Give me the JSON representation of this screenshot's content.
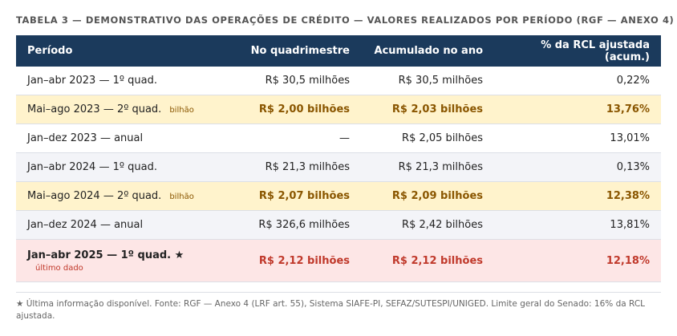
{
  "caption": "TABELA 3 — DEMONSTRATIVO DAS OPERAÇÕES DE CRÉDITO — VALORES REALIZADOS POR PERÍODO (RGF — ANEXO 4)",
  "headers": [
    "Período",
    "No quadrimestre",
    "Acumulado no ano",
    "% da RCL ajustada (acum.)"
  ],
  "rows": [
    {
      "period": "Jan–abr 2023 — 1º quad.",
      "tag": "",
      "quad": "R$ 30,5 milhões",
      "acum": "R$ 30,5 milhões",
      "pct": "0,22%",
      "style": "white"
    },
    {
      "period": "Mai–ago 2023 — 2º quad.",
      "tag": "bilhão",
      "quad": "R$ 2,00 bilhões",
      "acum": "R$ 2,03 bilhões",
      "pct": "13,76%",
      "style": "highlight"
    },
    {
      "period": "Jan–dez 2023 — anual",
      "tag": "",
      "quad": "—",
      "acum": "R$ 2,05 bilhões",
      "pct": "13,01%",
      "style": "white"
    },
    {
      "period": "Jan–abr 2024 — 1º quad.",
      "tag": "",
      "quad": "R$ 21,3 milhões",
      "acum": "R$ 21,3 milhões",
      "pct": "0,13%",
      "style": "gray"
    },
    {
      "period": "Mai–ago 2024 — 2º quad.",
      "tag": "bilhão",
      "quad": "R$ 2,07 bilhões",
      "acum": "R$ 2,09 bilhões",
      "pct": "12,38%",
      "style": "highlight"
    },
    {
      "period": "Jan–dez 2024 — anual",
      "tag": "",
      "quad": "R$ 326,6 milhões",
      "acum": "R$ 2,42 bilhões",
      "pct": "13,81%",
      "style": "gray"
    },
    {
      "period": "Jan–abr 2025 — 1º quad. ★",
      "tag": "último dado",
      "quad": "R$ 2,12 bilhões",
      "acum": "R$ 2,12 bilhões",
      "pct": "12,18%",
      "style": "latest"
    }
  ],
  "footnote": "★ Última informação disponível. Fonte: RGF — Anexo 4 (LRF art. 55), Sistema SIAFE-PI, SEFAZ/SUTESPI/UNIGED. Limite geral do Senado: 16% da RCL ajustada.",
  "colors": {
    "header_bg": "#1b3a5c",
    "highlight_bg": "#fff3cc",
    "highlight_text": "#8a5600",
    "latest_bg": "#fde6e6",
    "latest_text": "#c0392b",
    "gray_bg": "#f3f4f8"
  }
}
